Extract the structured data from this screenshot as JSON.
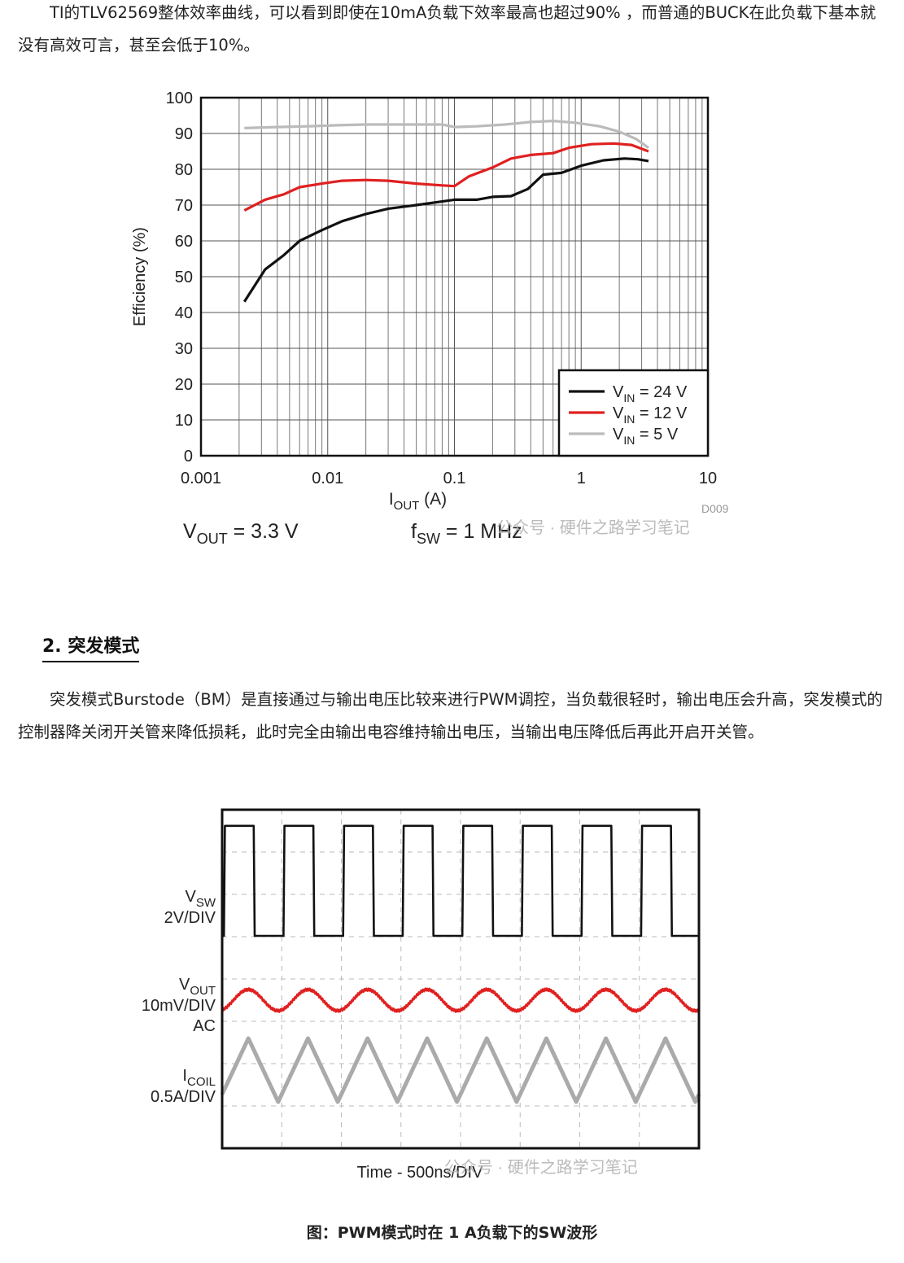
{
  "article": {
    "paragraph1": "TI的TLV62569整体效率曲线，可以看到即使在10mA负载下效率最高也超过90% ，而普通的BUCK在此负载下基本就没有高效可言，甚至会低于10%。",
    "section_heading": "2. 突发模式",
    "paragraph2": "突发模式Burstode（BM）是直接通过与输出电压比较来进行PWM调控，当负载很轻时，输出电压会升高，突发模式的控制器降关闭开关管来降低损耗，此时完全由输出电容维持输出电压，当输出电压降低后再此开启开关管。",
    "figure_caption": "图：PWM模式时在 1 A负载下的SW波形",
    "watermark": "公众号 · 硬件之路学习笔记"
  },
  "chart_data": [
    {
      "type": "line",
      "x_scale": "log",
      "xlim": [
        0.001,
        10
      ],
      "ylim": [
        0,
        100
      ],
      "grid": true,
      "legend_position": "bottom-right",
      "x_ticks": [
        "0.001",
        "0.01",
        "0.1",
        "1",
        "10"
      ],
      "y_ticks": [
        "0",
        "10",
        "20",
        "30",
        "40",
        "50",
        "60",
        "70",
        "80",
        "90",
        "100"
      ],
      "ylabel": "Efficiency (%)",
      "xlabel": {
        "main": "I",
        "sub": "OUT",
        "rest": " (A)"
      },
      "figure_id": "D009",
      "conditions": [
        {
          "main": "V",
          "sub": "OUT",
          "rest": " = 3.3 V"
        },
        {
          "main": "f",
          "sub": "SW",
          "rest": " = 1 MHz"
        }
      ],
      "series": [
        {
          "name": "VIN = 24 V",
          "legend": {
            "main": "V",
            "sub": "IN",
            "rest": " = 24 V"
          },
          "color": "#111111",
          "points": [
            [
              0.0022,
              43
            ],
            [
              0.0032,
              52
            ],
            [
              0.0045,
              56
            ],
            [
              0.006,
              60
            ],
            [
              0.009,
              63
            ],
            [
              0.013,
              65.5
            ],
            [
              0.02,
              67.5
            ],
            [
              0.03,
              69
            ],
            [
              0.05,
              70
            ],
            [
              0.08,
              71
            ],
            [
              0.1,
              71.5
            ],
            [
              0.15,
              71.5
            ],
            [
              0.2,
              72.3
            ],
            [
              0.28,
              72.5
            ],
            [
              0.38,
              74.5
            ],
            [
              0.5,
              78.5
            ],
            [
              0.7,
              79
            ],
            [
              1.0,
              81
            ],
            [
              1.5,
              82.5
            ],
            [
              2.2,
              83
            ],
            [
              2.8,
              82.8
            ],
            [
              3.4,
              82.3
            ]
          ]
        },
        {
          "name": "VIN = 12 V",
          "legend": {
            "main": "V",
            "sub": "IN",
            "rest": " = 12 V"
          },
          "color": "#e02020",
          "points": [
            [
              0.0022,
              68.5
            ],
            [
              0.0032,
              71.5
            ],
            [
              0.0045,
              73
            ],
            [
              0.006,
              75
            ],
            [
              0.009,
              76
            ],
            [
              0.013,
              76.8
            ],
            [
              0.02,
              77
            ],
            [
              0.03,
              76.8
            ],
            [
              0.05,
              76
            ],
            [
              0.08,
              75.5
            ],
            [
              0.1,
              75.3
            ],
            [
              0.13,
              78
            ],
            [
              0.2,
              80.5
            ],
            [
              0.28,
              83
            ],
            [
              0.4,
              84
            ],
            [
              0.6,
              84.5
            ],
            [
              0.8,
              86
            ],
            [
              1.2,
              87
            ],
            [
              1.8,
              87.2
            ],
            [
              2.5,
              86.8
            ],
            [
              3.4,
              85
            ]
          ]
        },
        {
          "name": "VIN = 5 V",
          "legend": {
            "main": "V",
            "sub": "IN",
            "rest": " = 5 V"
          },
          "color": "#bbbbbb",
          "points": [
            [
              0.0022,
              91.5
            ],
            [
              0.004,
              91.8
            ],
            [
              0.007,
              92
            ],
            [
              0.012,
              92.3
            ],
            [
              0.02,
              92.5
            ],
            [
              0.04,
              92.5
            ],
            [
              0.08,
              92.5
            ],
            [
              0.1,
              91.8
            ],
            [
              0.15,
              92
            ],
            [
              0.25,
              92.5
            ],
            [
              0.4,
              93.2
            ],
            [
              0.6,
              93.5
            ],
            [
              0.9,
              93
            ],
            [
              1.4,
              92
            ],
            [
              2.0,
              90.5
            ],
            [
              2.7,
              88.5
            ],
            [
              3.4,
              86
            ]
          ]
        }
      ]
    },
    {
      "type": "line",
      "subtype": "oscilloscope",
      "grid": true,
      "xlabel": "Time - 500ns/DIV",
      "x_unit": "ns",
      "xlim": [
        0,
        4000
      ],
      "channels": [
        {
          "name": "VSW",
          "label": {
            "main": "V",
            "sub": "SW",
            "scale": "2V/DIV",
            "coupling": ""
          },
          "color": "#111111",
          "waveform": "square",
          "period_ns": 500,
          "duty": 0.5,
          "levels_div": [
            0,
            2.6
          ]
        },
        {
          "name": "VOUT",
          "label": {
            "main": "V",
            "sub": "OUT",
            "scale": "10mV/DIV",
            "coupling": "AC"
          },
          "color": "#e02020",
          "waveform": "ripple",
          "period_ns": 500,
          "amplitude_div": 0.25
        },
        {
          "name": "ICOIL",
          "label": {
            "main": "I",
            "sub": "COIL",
            "scale": "0.5A/DIV",
            "coupling": ""
          },
          "color": "#aaaaaa",
          "waveform": "triangle",
          "period_ns": 500,
          "amplitude_div": 0.75
        }
      ]
    }
  ]
}
